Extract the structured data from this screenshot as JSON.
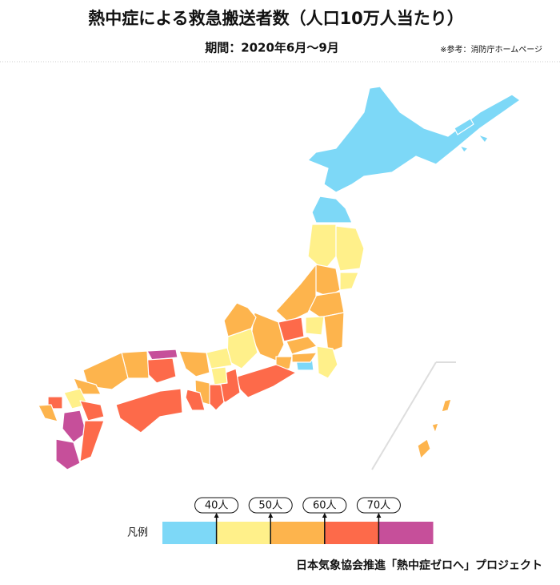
{
  "header": {
    "title": "熱中症による救急搬送者数（人口10万人当たり）",
    "period": "期間：2020年6月〜9月",
    "source": "※参考：消防庁ホームページ"
  },
  "legend": {
    "label": "凡例",
    "colors": [
      "#7dd8f7",
      "#fff08a",
      "#fdb44d",
      "#fd6a4a",
      "#c64f9a"
    ],
    "thresholds": [
      {
        "value": 40,
        "label": "40人"
      },
      {
        "value": 50,
        "label": "50人"
      },
      {
        "value": 60,
        "label": "60人"
      },
      {
        "value": 70,
        "label": "70人"
      }
    ]
  },
  "footer": "日本気象協会推進「熱中症ゼロへ」プロジェクト"
}
